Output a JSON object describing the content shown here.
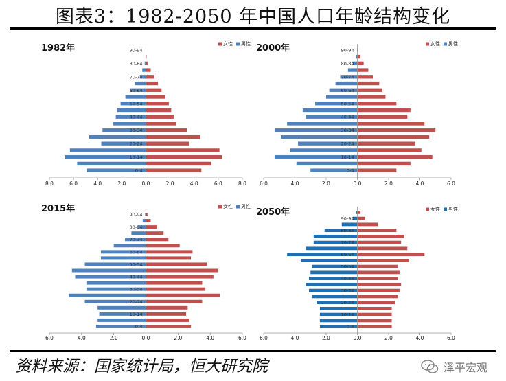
{
  "title": "图表3：1982-2050 年中国人口年龄结构变化",
  "source": "资料来源：国家统计局，恒大研究院",
  "watermark": "泽平宏观",
  "colors": {
    "female": "#c0504d",
    "male": "#4f81bd",
    "male_2050": "#1f6fb2"
  },
  "chart_data": [
    {
      "type": "bar",
      "title": "1982年",
      "legend": [
        "女性",
        "男性"
      ],
      "age_groups": [
        "0-4",
        "5-9",
        "10-14",
        "15-19",
        "20-24",
        "25-29",
        "30-34",
        "35-39",
        "40-44",
        "45-49",
        "50-54",
        "55-59",
        "60-64",
        "65-69",
        "70-74",
        "75-79",
        "80-84",
        "85-89",
        "90-94"
      ],
      "age_tick_labels": [
        "0-4",
        "10-14",
        "20-24",
        "30-34",
        "40-44",
        "50-54",
        "60-64",
        "70-74",
        "80-84",
        "90-94"
      ],
      "x_tick_labels": [
        "8.0",
        "6.0",
        "4.0",
        "2.0",
        "0.0",
        "2.0",
        "4.0",
        "6.0",
        "8.0"
      ],
      "xlim": 8,
      "female": [
        4.6,
        5.4,
        6.3,
        6.1,
        3.6,
        4.5,
        3.4,
        2.5,
        2.3,
        2.1,
        1.9,
        1.6,
        1.3,
        1.0,
        0.7,
        0.4,
        0.2,
        0.05,
        0.01
      ],
      "male": [
        4.9,
        5.7,
        6.7,
        6.3,
        3.7,
        4.7,
        3.6,
        2.7,
        2.5,
        2.4,
        2.1,
        1.7,
        1.3,
        0.9,
        0.5,
        0.3,
        0.1,
        0.03,
        0.01
      ]
    },
    {
      "type": "bar",
      "title": "2000年",
      "legend": [
        "女性",
        "男性"
      ],
      "age_groups": [
        "0-4",
        "5-9",
        "10-14",
        "15-19",
        "20-24",
        "25-29",
        "30-34",
        "35-39",
        "40-44",
        "45-49",
        "50-54",
        "55-59",
        "60-64",
        "65-69",
        "70-74",
        "75-79",
        "80-84",
        "85-89",
        "90-94"
      ],
      "age_tick_labels": [
        "0-4",
        "10-14",
        "20-24",
        "30-34",
        "40-44",
        "50-54",
        "60-64",
        "70-74",
        "80-84",
        "90-94"
      ],
      "x_tick_labels": [
        "6.0",
        "4.0",
        "2.0",
        "0.0",
        "2.0",
        "4.0",
        "6.0"
      ],
      "xlim": 6,
      "female": [
        2.5,
        3.4,
        4.8,
        4.1,
        3.7,
        4.6,
        5.0,
        4.3,
        3.2,
        3.4,
        2.5,
        1.8,
        1.6,
        1.4,
        1.0,
        0.7,
        0.4,
        0.2,
        0.05
      ],
      "male": [
        3.0,
        3.9,
        5.3,
        4.3,
        3.8,
        4.9,
        5.3,
        4.5,
        3.3,
        3.5,
        2.7,
        2.0,
        1.8,
        1.4,
        1.1,
        0.6,
        0.3,
        0.1,
        0.02
      ]
    },
    {
      "type": "bar",
      "title": "2015年",
      "legend": [
        "女性",
        "男性"
      ],
      "age_groups": [
        "0-4",
        "5-9",
        "10-14",
        "15-19",
        "20-24",
        "25-29",
        "30-34",
        "35-39",
        "40-44",
        "45-49",
        "50-54",
        "55-59",
        "60-64",
        "65-69",
        "70-74",
        "75-79",
        "80-84",
        "85-89",
        "90-94"
      ],
      "age_tick_labels": [
        "0-4",
        "10-14",
        "20-24",
        "30-34",
        "40-44",
        "50-54",
        "60-64",
        "70-74",
        "80-84",
        "90-94"
      ],
      "x_tick_labels": [
        "6.0",
        "4.0",
        "2.0",
        "0.0",
        "2.0",
        "4.0",
        "6.0"
      ],
      "xlim": 6,
      "female": [
        2.8,
        2.7,
        2.5,
        2.6,
        3.5,
        4.6,
        3.7,
        3.5,
        4.2,
        4.5,
        3.8,
        2.8,
        2.9,
        2.1,
        1.4,
        1.1,
        0.7,
        0.3,
        0.1
      ],
      "male": [
        3.1,
        3.0,
        2.9,
        3.0,
        3.8,
        4.8,
        3.7,
        3.7,
        4.4,
        4.6,
        3.8,
        2.8,
        2.8,
        2.0,
        1.3,
        0.9,
        0.5,
        0.2,
        0.05
      ]
    },
    {
      "type": "bar",
      "title": "2050年",
      "legend": [
        "女性",
        "男性"
      ],
      "age_groups": [
        "0-4",
        "5-9",
        "10-14",
        "15-19",
        "20-24",
        "25-29",
        "30-34",
        "35-39",
        "40-44",
        "45-49",
        "50-54",
        "55-59",
        "60-64",
        "65-69",
        "70-74",
        "75-79",
        "80-84",
        "85-89",
        "90-94",
        "95+"
      ],
      "age_tick_labels": [
        "0-4",
        "10-14",
        "20-24",
        "30-34",
        "40-44",
        "50-54",
        "60-64",
        "70-74",
        "80-84",
        "90-94"
      ],
      "x_tick_labels": [
        "6.0",
        "4.0",
        "2.0",
        "0.0",
        "2.0",
        "4.0",
        "6.0"
      ],
      "xlim": 6,
      "female": [
        2.2,
        2.2,
        2.2,
        2.2,
        2.4,
        2.6,
        2.7,
        2.8,
        2.6,
        2.7,
        2.6,
        3.3,
        4.3,
        3.2,
        2.8,
        3.0,
        2.5,
        1.3,
        0.5,
        0.2
      ],
      "male": [
        2.4,
        2.4,
        2.4,
        2.4,
        2.6,
        2.9,
        3.1,
        3.3,
        3.1,
        3.0,
        2.9,
        3.6,
        4.5,
        3.3,
        2.8,
        2.8,
        2.1,
        1.0,
        0.3,
        0.1
      ]
    }
  ]
}
